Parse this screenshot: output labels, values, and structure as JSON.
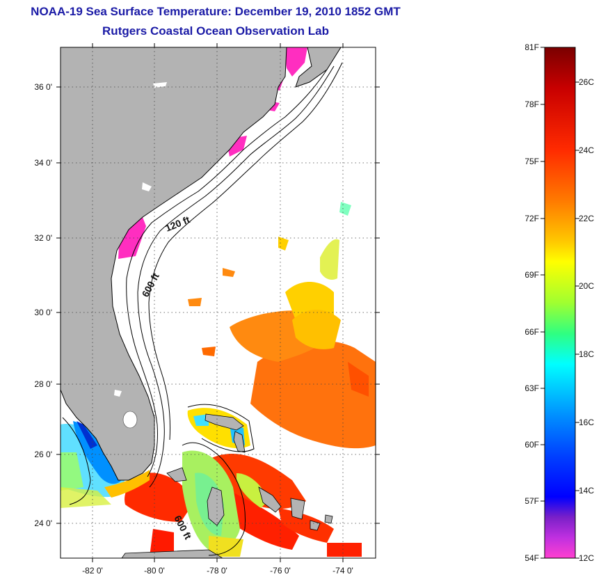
{
  "header": {
    "title": "NOAA-19 Sea Surface Temperature:  December 19, 2010 1852 GMT",
    "subtitle": "Rutgers Coastal Ocean Observation Lab"
  },
  "map": {
    "lat_labels": [
      "36 0'",
      "34 0'",
      "32 0'",
      "30 0'",
      "28 0'",
      "26 0'",
      "24 0'"
    ],
    "lon_labels": [
      "-82 0'",
      "-80 0'",
      "-78 0'",
      "-76 0'",
      "-74 0'"
    ],
    "contour_labels": [
      "120 ft",
      "600 ft",
      "600 ft"
    ],
    "colors": {
      "land": "#b3b3b3",
      "cloud_masked": "#ffffff",
      "coast_line": "#000000"
    }
  },
  "colorbar": {
    "fahrenheit_labels": [
      "81F",
      "78F",
      "75F",
      "72F",
      "69F",
      "66F",
      "63F",
      "60F",
      "57F",
      "54F"
    ],
    "celsius_labels": [
      "26C",
      "24C",
      "22C",
      "20C",
      "18C",
      "16C",
      "14C",
      "12C"
    ],
    "gradient_colors": [
      "#7a0000",
      "#c80000",
      "#ff2a00",
      "#ff7a00",
      "#ffc800",
      "#ffff00",
      "#a0ff30",
      "#30ff80",
      "#00ffff",
      "#0090ff",
      "#0040ff",
      "#0000ff",
      "#7a20c8",
      "#c030e0",
      "#ff40d0"
    ]
  }
}
